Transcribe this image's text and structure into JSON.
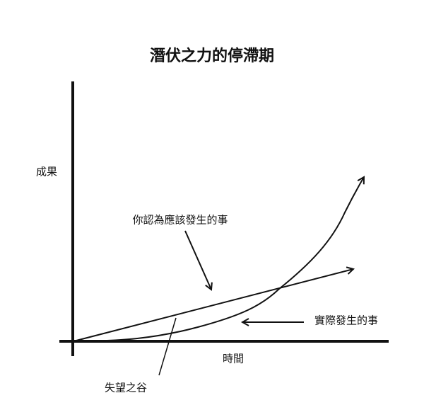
{
  "title": "潛伏之力的停滯期",
  "axes": {
    "y_label": "成果",
    "x_label": "時間"
  },
  "annotations": {
    "expected": "你認為應該發生的事",
    "actual": "實際發生的事",
    "valley": "失望之谷"
  }
}
